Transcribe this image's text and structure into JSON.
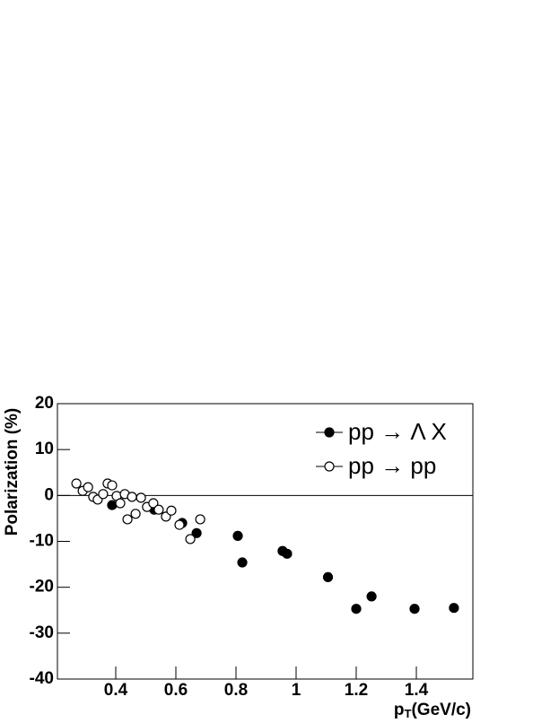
{
  "chart_data": {
    "type": "scatter",
    "x_label": [
      "p",
      "T",
      "(GeV/c)"
    ],
    "y_label": "Polarization (%)",
    "xlim": [
      0.206,
      1.588
    ],
    "ylim": [
      -40,
      20
    ],
    "xticks": [
      0.4,
      0.6,
      0.8,
      1,
      1.2,
      1.4
    ],
    "yticks": [
      -40,
      -30,
      -20,
      -10,
      0,
      10,
      20
    ],
    "zero_line": true,
    "legend": "upper right",
    "series": [
      {
        "name": "pp → Λ X",
        "color": "#000000",
        "marker": "filled",
        "x": [
          0.388,
          0.528,
          0.621,
          0.669,
          0.806,
          0.821,
          0.955,
          0.97,
          1.106,
          1.2,
          1.251,
          1.394,
          1.525
        ],
        "values": [
          -2.1,
          -3.1,
          -6.0,
          -8.2,
          -8.8,
          -14.6,
          -12.1,
          -12.7,
          -17.8,
          -24.7,
          -22.0,
          -24.7,
          -24.5
        ]
      },
      {
        "name": "pp → pp",
        "color": "#000000",
        "marker": "open",
        "x": [
          0.269,
          0.29,
          0.308,
          0.325,
          0.34,
          0.358,
          0.373,
          0.388,
          0.403,
          0.415,
          0.43,
          0.439,
          0.454,
          0.466,
          0.484,
          0.504,
          0.525,
          0.543,
          0.567,
          0.585,
          0.612,
          0.648,
          0.681
        ],
        "values": [
          2.6,
          1.0,
          1.8,
          -0.3,
          -0.9,
          0.3,
          2.6,
          2.2,
          -0.1,
          -1.7,
          0.3,
          -5.2,
          -0.3,
          -4.0,
          -0.5,
          -2.5,
          -1.7,
          -3.1,
          -4.6,
          -3.3,
          -6.4,
          -9.5,
          -5.2
        ]
      }
    ]
  }
}
